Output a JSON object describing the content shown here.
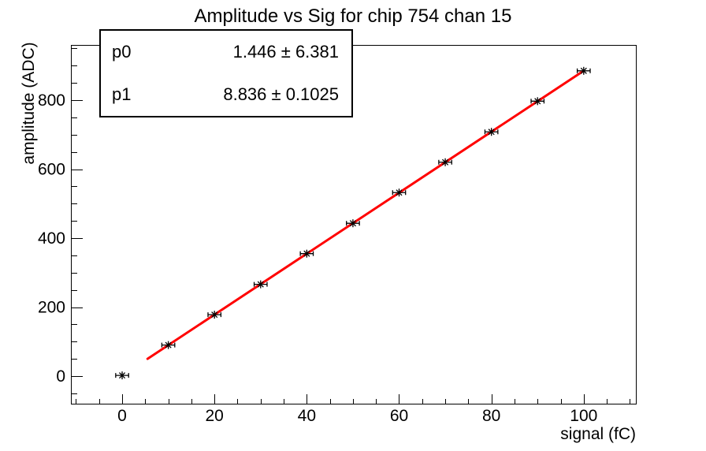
{
  "chart_data": {
    "type": "scatter",
    "title": "Amplitude vs Sig for chip 754 chan 15",
    "xlabel": "signal (fC)",
    "ylabel": "amplitude (ADC)",
    "x": [
      0,
      10,
      20,
      30,
      40,
      50,
      60,
      70,
      80,
      90,
      100
    ],
    "y": [
      2,
      90,
      178,
      266,
      355,
      443,
      532,
      620,
      708,
      797,
      885
    ],
    "x_error_half_width": 1.4,
    "marker": "asterisk",
    "marker_color": "#000000",
    "fit_line": {
      "p0": 1.446,
      "p1": 8.836,
      "x_range": [
        5.5,
        100
      ],
      "color": "#ff0000"
    },
    "xlim": [
      -11.1,
      111.3
    ],
    "ylim": [
      -80,
      960
    ],
    "x_major_ticks": [
      0,
      20,
      40,
      60,
      80,
      100
    ],
    "x_minor_step": 5,
    "y_major_ticks": [
      0,
      200,
      400,
      600,
      800
    ],
    "y_minor_step": 50,
    "grid": false,
    "legend_position": "none",
    "axis_color": "#000000",
    "text_color": "#000000"
  },
  "stats_box": {
    "rows": [
      {
        "label": "p0",
        "value": "1.446 ± 6.381"
      },
      {
        "label": "p1",
        "value": "8.836 ± 0.1025"
      }
    ]
  }
}
